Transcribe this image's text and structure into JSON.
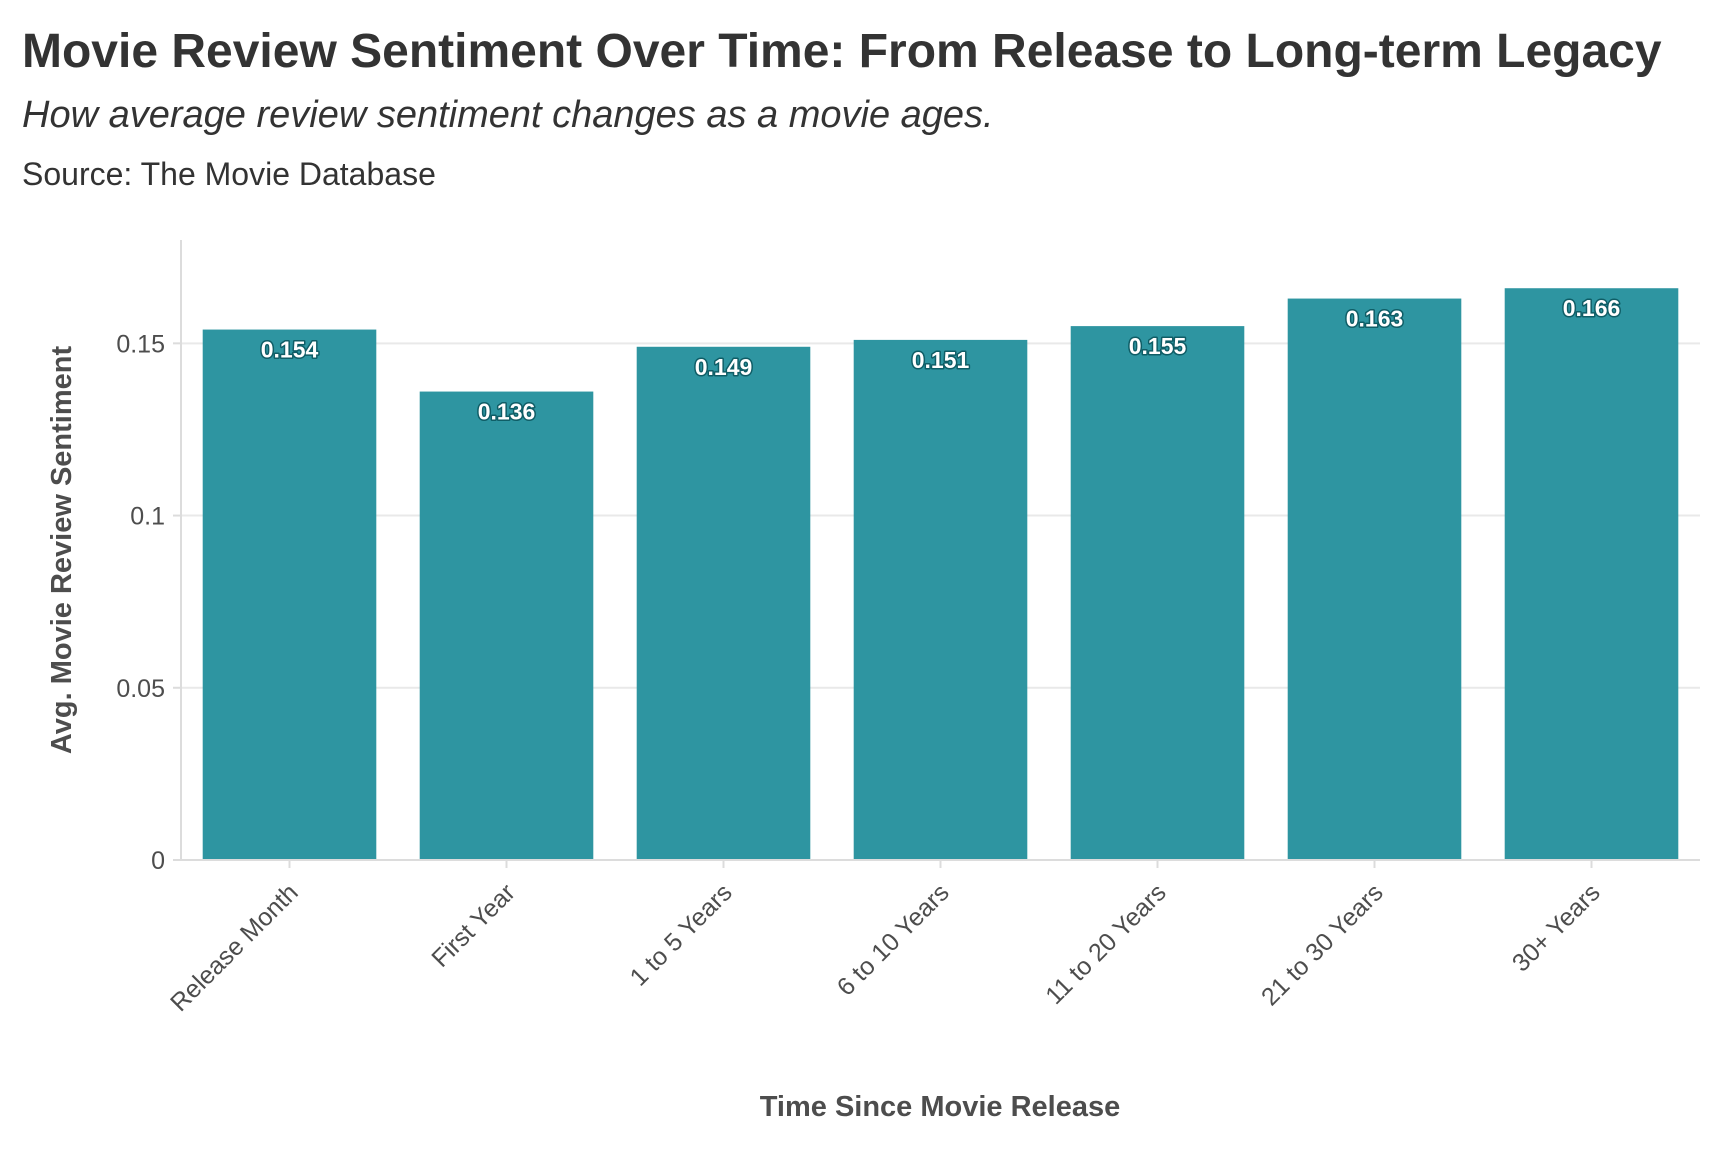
{
  "header": {
    "title": "Movie Review Sentiment Over Time: From Release to Long-term Legacy",
    "subtitle": "How average review sentiment changes as a movie ages.",
    "source": "Source: The Movie Database"
  },
  "colors": {
    "bar": "#2e95a1",
    "grid": "#e9e9e9",
    "axis_text": "#4d4d4d",
    "title_text": "#333333"
  },
  "chart_data": {
    "type": "bar",
    "title": "Movie Review Sentiment Over Time: From Release to Long-term Legacy",
    "subtitle": "How average review sentiment changes as a movie ages.",
    "xlabel": "Time Since Movie Release",
    "ylabel": "Avg. Movie Review Sentiment",
    "categories": [
      "Release Month",
      "First Year",
      "1 to 5 Years",
      "6 to 10 Years",
      "11 to 20 Years",
      "21 to 30 Years",
      "30+ Years"
    ],
    "values": [
      0.154,
      0.136,
      0.149,
      0.151,
      0.155,
      0.163,
      0.166
    ],
    "data_labels": [
      "0.154",
      "0.136",
      "0.149",
      "0.151",
      "0.155",
      "0.163",
      "0.166"
    ],
    "ylim": [
      0,
      0.18
    ],
    "yticks": [
      0,
      0.05,
      0.1,
      0.15
    ],
    "ytick_labels": [
      "0",
      "0.05",
      "0.1",
      "0.15"
    ],
    "grid": true,
    "legend": "none"
  }
}
